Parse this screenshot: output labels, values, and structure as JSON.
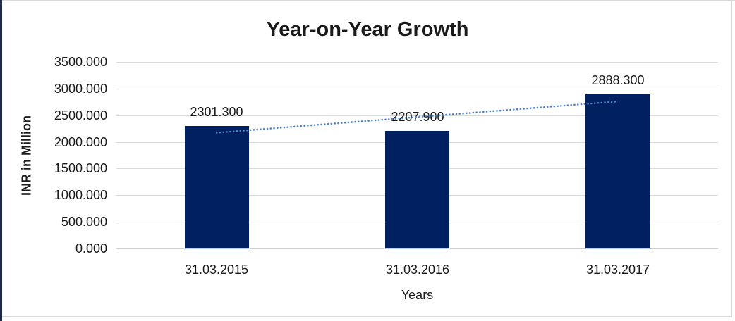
{
  "chart_data": {
    "type": "bar",
    "title": "Year-on-Year Growth",
    "xlabel": "Years",
    "ylabel": "INR in Million",
    "categories": [
      "31.03.2015",
      "31.03.2016",
      "31.03.2017"
    ],
    "values": [
      2301.3,
      2207.9,
      2888.3
    ],
    "data_labels": [
      "2301.300",
      "2207.900",
      "2888.300"
    ],
    "ylim": [
      0,
      3500
    ],
    "ytick_values": [
      3500,
      3000,
      2500,
      2000,
      1500,
      1000,
      500,
      0
    ],
    "ytick_labels": [
      "3500.000",
      "3000.000",
      "2500.000",
      "2000.000",
      "1500.000",
      "1000.000",
      "500.000",
      "0.000"
    ],
    "grid": true,
    "legend_position": "none",
    "trendline": {
      "type": "linear",
      "style": "dotted",
      "start_value": 2172.3,
      "end_value": 2759.3
    },
    "colors": {
      "bar": "#002060",
      "trendline": "#4e82c4",
      "gridline": "#d9d9d9",
      "axis_line": "#cfcfcf",
      "text": "#1a1a1a",
      "frame_gray": "#d9d9d9",
      "frame_left": "#1f2a44"
    }
  }
}
